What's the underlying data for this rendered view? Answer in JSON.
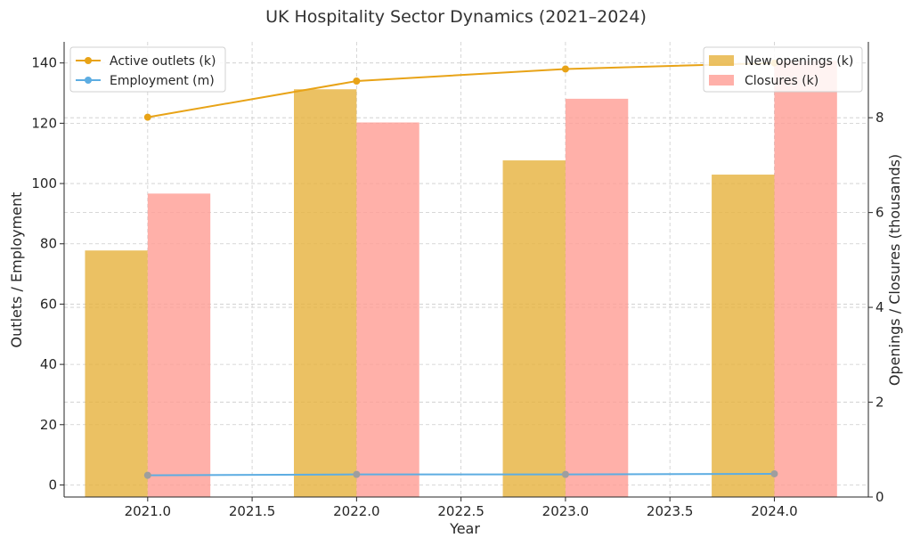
{
  "chart_data": {
    "type": "bar",
    "title": "UK Hospitality Sector Dynamics (2021–2024)",
    "xlabel": "Year",
    "ylabel_left": "Outlets / Employment",
    "ylabel_right": "Openings / Closures (thousands)",
    "x": [
      2021,
      2022,
      2023,
      2024
    ],
    "x_ticks": [
      "2021.0",
      "2021.5",
      "2022.0",
      "2022.5",
      "2023.0",
      "2023.5",
      "2024.0"
    ],
    "x_tick_values": [
      2021.0,
      2021.5,
      2022.0,
      2022.5,
      2023.0,
      2023.5,
      2024.0
    ],
    "xlim": [
      2020.6,
      2024.45
    ],
    "ylim_left": [
      -4,
      147
    ],
    "yticks_left": [
      0,
      20,
      40,
      60,
      80,
      100,
      120,
      140
    ],
    "ylim_right": [
      0,
      9.6
    ],
    "yticks_right": [
      0,
      2,
      4,
      6,
      8
    ],
    "grid": true,
    "bar_series": [
      {
        "name": "New openings (k)",
        "values": [
          5.2,
          8.6,
          7.1,
          6.8
        ],
        "color": "#e6b23c"
      },
      {
        "name": "Closures (k)",
        "values": [
          6.4,
          7.9,
          8.4,
          9.2
        ],
        "color": "#ff9c94"
      }
    ],
    "line_series": [
      {
        "name": "Active outlets (k)",
        "values": [
          122,
          134,
          138,
          140
        ],
        "color": "#e8a317"
      },
      {
        "name": "Employment (m)",
        "values": [
          3.2,
          3.5,
          3.5,
          3.7
        ],
        "color": "#5dade2"
      }
    ],
    "legend_left_position": "top-left",
    "legend_right_position": "top-right"
  }
}
